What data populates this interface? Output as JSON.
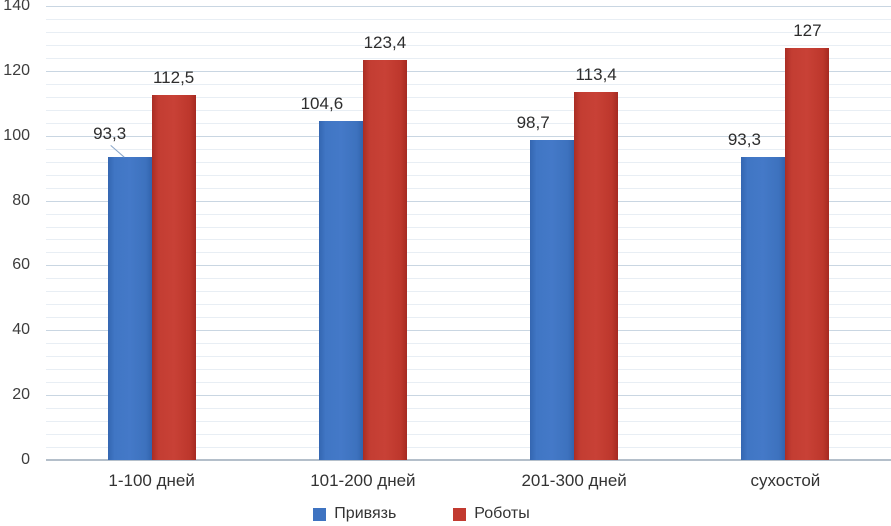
{
  "chart_data": {
    "type": "bar",
    "title": "",
    "xlabel": "",
    "ylabel": "",
    "categories": [
      "1-100 дней",
      "101-200 дней",
      "201-300 дней",
      "сухостой"
    ],
    "series": [
      {
        "name": "Привязь",
        "color": "#3e73c1",
        "values": [
          93.3,
          104.6,
          98.7,
          93.3
        ],
        "data_labels": [
          "93,3",
          "104,6",
          "98,7",
          "93,3"
        ]
      },
      {
        "name": "Роботы",
        "color": "#c23a30",
        "values": [
          112.5,
          123.4,
          113.4,
          127
        ],
        "data_labels": [
          "112,5",
          "123,4",
          "113,4",
          "127"
        ]
      }
    ],
    "ylim": [
      0,
      140
    ],
    "ytick_step": 20,
    "ytick_labels": [
      "0",
      "20",
      "40",
      "60",
      "80",
      "100",
      "120",
      "140"
    ],
    "minor_grid_step": 4,
    "grid": true,
    "decimal_separator": ",",
    "legend_position": "bottom",
    "annotations": {
      "label_leader_line": {
        "series": "Привязь",
        "category": "1-100 дней",
        "label": "93,3"
      }
    },
    "colors": {
      "gridline_major": "#c9d6e2",
      "gridline_minor": "#e8eef4",
      "axis_line": "#b4bfca",
      "text": "#333333"
    }
  }
}
